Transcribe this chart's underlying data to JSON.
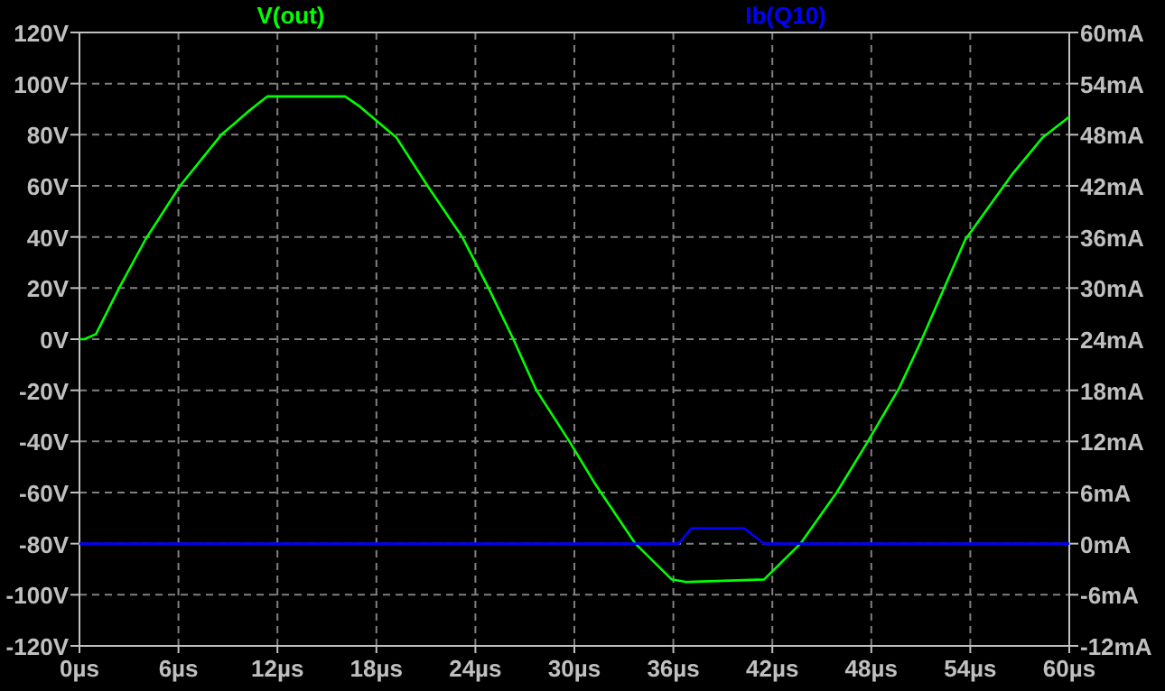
{
  "chart_data": {
    "type": "line",
    "legend": "top",
    "grid": true,
    "xlim": [
      0,
      60
    ],
    "xticks": [
      {
        "value": 0,
        "label": "0µs"
      },
      {
        "value": 6,
        "label": "6µs"
      },
      {
        "value": 12,
        "label": "12µs"
      },
      {
        "value": 18,
        "label": "18µs"
      },
      {
        "value": 24,
        "label": "24µs"
      },
      {
        "value": 30,
        "label": "30µs"
      },
      {
        "value": 36,
        "label": "36µs"
      },
      {
        "value": 42,
        "label": "42µs"
      },
      {
        "value": 48,
        "label": "48µs"
      },
      {
        "value": 54,
        "label": "54µs"
      },
      {
        "value": 60,
        "label": "60µs"
      }
    ],
    "ylim": [
      -120,
      120
    ],
    "yticks": [
      {
        "value": -120,
        "label": "-120V"
      },
      {
        "value": -100,
        "label": "-100V"
      },
      {
        "value": -80,
        "label": "-80V"
      },
      {
        "value": -60,
        "label": "-60V"
      },
      {
        "value": -40,
        "label": "-40V"
      },
      {
        "value": -20,
        "label": "-20V"
      },
      {
        "value": 0,
        "label": "0V"
      },
      {
        "value": 20,
        "label": "20V"
      },
      {
        "value": 40,
        "label": "40V"
      },
      {
        "value": 60,
        "label": "60V"
      },
      {
        "value": 80,
        "label": "80V"
      },
      {
        "value": 100,
        "label": "100V"
      },
      {
        "value": 120,
        "label": "120V"
      }
    ],
    "y2lim": [
      -12,
      60
    ],
    "y2ticks": [
      {
        "value": -12,
        "label": "-12mA"
      },
      {
        "value": -6,
        "label": "-6mA"
      },
      {
        "value": 0,
        "label": "0mA"
      },
      {
        "value": 6,
        "label": "6mA"
      },
      {
        "value": 12,
        "label": "12mA"
      },
      {
        "value": 18,
        "label": "18mA"
      },
      {
        "value": 24,
        "label": "24mA"
      },
      {
        "value": 30,
        "label": "30mA"
      },
      {
        "value": 36,
        "label": "36mA"
      },
      {
        "value": 42,
        "label": "42mA"
      },
      {
        "value": 48,
        "label": "48mA"
      },
      {
        "value": 54,
        "label": "54mA"
      },
      {
        "value": 60,
        "label": "60mA"
      }
    ],
    "series": [
      {
        "name": "V(out)",
        "color": "#00ff00",
        "x": [
          0,
          0.3,
          1,
          2.4,
          4,
          6.1,
          8.6,
          10.4,
          11.4,
          16.1,
          17,
          19.2,
          21.1,
          23.2,
          24.8,
          26.3,
          27.7,
          29.7,
          31.2,
          33.7,
          35.9,
          36.8,
          41.5,
          43.7,
          45.9,
          47.7,
          49.7,
          51,
          53.7,
          56.6,
          58.4,
          60
        ],
        "values": [
          0,
          0,
          2,
          20,
          39,
          60,
          80,
          90,
          95,
          95,
          91,
          79,
          60,
          40,
          20,
          0,
          -20,
          -40,
          -56,
          -80,
          -94,
          -95,
          -94,
          -80,
          -60,
          -41,
          -19,
          -1,
          39,
          65,
          79,
          87
        ]
      },
      {
        "name": "Ib(Q10)",
        "color": "#0000ff",
        "axis": "y2",
        "x": [
          0,
          36.3,
          37.1,
          40.3,
          41.5,
          60
        ],
        "values": [
          0,
          0,
          1.8,
          1.8,
          0,
          0
        ]
      }
    ]
  }
}
